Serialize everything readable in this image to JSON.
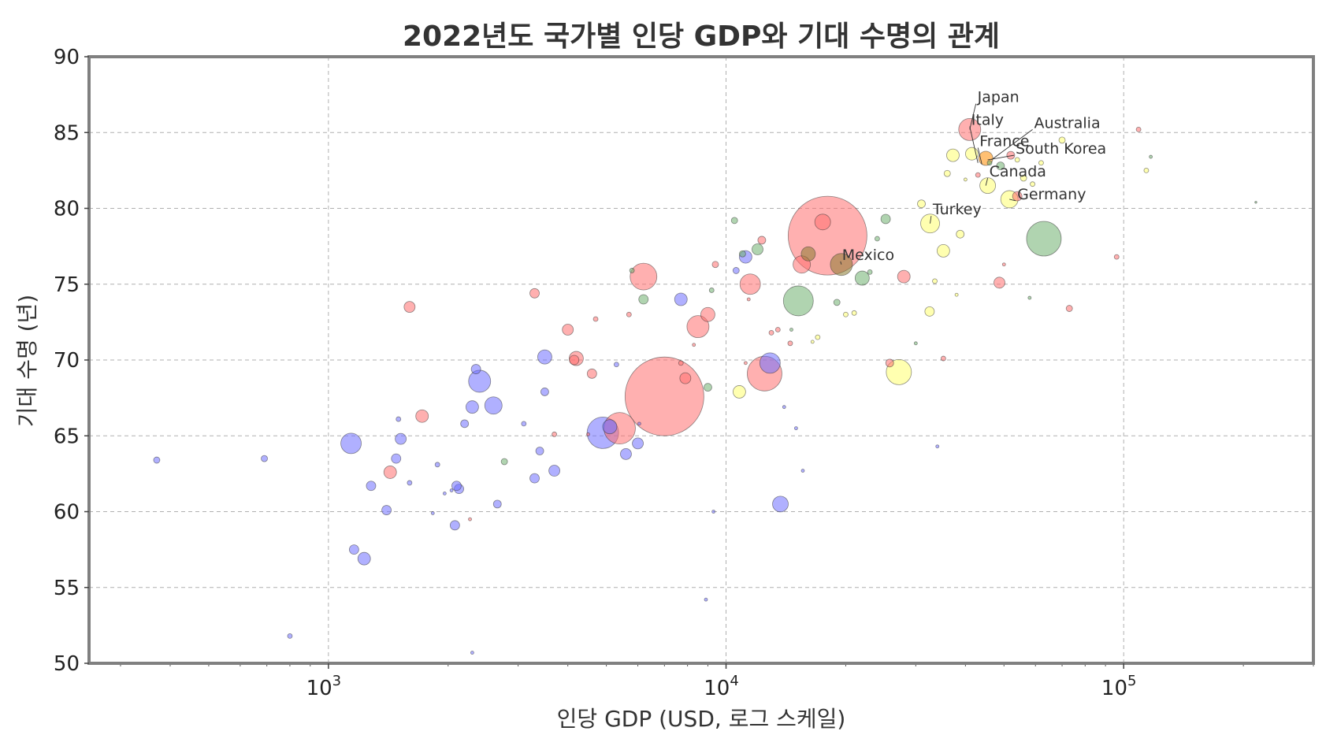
{
  "chart_data": {
    "type": "scatter",
    "title": "2022년도 국가별 인당 GDP와 기대 수명의 관계",
    "xlabel": "인당 GDP (USD, 로그 스케일)",
    "ylabel": "기대 수명 (년)",
    "x_scale": "log",
    "xlim": [
      250,
      300000
    ],
    "ylim": [
      50,
      90
    ],
    "x_ticks": [
      {
        "value": 1000,
        "base": "10",
        "exp": "3"
      },
      {
        "value": 10000,
        "base": "10",
        "exp": "4"
      },
      {
        "value": 100000,
        "base": "10",
        "exp": "5"
      }
    ],
    "y_ticks": [
      "50",
      "55",
      "60",
      "65",
      "70",
      "75",
      "80",
      "85",
      "90"
    ],
    "grid": true,
    "legend": "none",
    "colors": {
      "blue": "#8080ff",
      "red": "#ff8080",
      "green": "#80c080",
      "yellow": "#ffff80",
      "orange": "#ff8c00"
    },
    "points": [
      {
        "x": 7000,
        "y": 67.6,
        "size": 50,
        "color": "red"
      },
      {
        "x": 18000,
        "y": 78.2,
        "size": 50,
        "color": "red"
      },
      {
        "x": 63000,
        "y": 78.0,
        "size": 22,
        "color": "green"
      },
      {
        "x": 12500,
        "y": 69.1,
        "size": 22,
        "color": "red"
      },
      {
        "x": 4900,
        "y": 65.2,
        "size": 20,
        "color": "blue"
      },
      {
        "x": 15200,
        "y": 73.9,
        "size": 19,
        "color": "green"
      },
      {
        "x": 5400,
        "y": 65.5,
        "size": 20,
        "color": "red"
      },
      {
        "x": 6200,
        "y": 75.5,
        "size": 17,
        "color": "red"
      },
      {
        "x": 27200,
        "y": 69.2,
        "size": 16,
        "color": "yellow"
      },
      {
        "x": 8500,
        "y": 72.2,
        "size": 14,
        "color": "red"
      },
      {
        "x": 11500,
        "y": 75.0,
        "size": 13,
        "color": "red"
      },
      {
        "x": 19500,
        "y": 76.3,
        "size": 14,
        "color": "olive"
      },
      {
        "x": 12900,
        "y": 69.8,
        "size": 13,
        "color": "blue"
      },
      {
        "x": 2400,
        "y": 68.6,
        "size": 14,
        "color": "blue"
      },
      {
        "x": 1140,
        "y": 64.5,
        "size": 13,
        "color": "blue"
      },
      {
        "x": 2600,
        "y": 67.0,
        "size": 11,
        "color": "blue"
      },
      {
        "x": 41000,
        "y": 85.2,
        "size": 14,
        "color": "red"
      },
      {
        "x": 15500,
        "y": 76.3,
        "size": 11,
        "color": "red"
      },
      {
        "x": 32600,
        "y": 79.0,
        "size": 12,
        "color": "yellow"
      },
      {
        "x": 51600,
        "y": 80.6,
        "size": 11,
        "color": "yellow"
      },
      {
        "x": 13700,
        "y": 60.5,
        "size": 10,
        "color": "blue"
      },
      {
        "x": 45500,
        "y": 81.5,
        "size": 10,
        "color": "yellow"
      },
      {
        "x": 17500,
        "y": 79.1,
        "size": 10,
        "color": "red"
      },
      {
        "x": 9000,
        "y": 73.0,
        "size": 9,
        "color": "red"
      },
      {
        "x": 22000,
        "y": 75.4,
        "size": 9,
        "color": "green"
      },
      {
        "x": 16100,
        "y": 77.0,
        "size": 9,
        "color": "olive"
      },
      {
        "x": 45000,
        "y": 83.3,
        "size": 9,
        "color": "orange"
      },
      {
        "x": 41500,
        "y": 83.6,
        "size": 8,
        "color": "yellow"
      },
      {
        "x": 37200,
        "y": 83.5,
        "size": 8,
        "color": "yellow"
      },
      {
        "x": 3500,
        "y": 70.2,
        "size": 9,
        "color": "blue"
      },
      {
        "x": 4200,
        "y": 70.1,
        "size": 9,
        "color": "red"
      },
      {
        "x": 5100,
        "y": 65.6,
        "size": 9,
        "color": "blue"
      },
      {
        "x": 11200,
        "y": 76.8,
        "size": 8,
        "color": "blue"
      },
      {
        "x": 1720,
        "y": 66.3,
        "size": 8,
        "color": "red"
      },
      {
        "x": 1430,
        "y": 62.6,
        "size": 8,
        "color": "red"
      },
      {
        "x": 2300,
        "y": 66.9,
        "size": 8,
        "color": "blue"
      },
      {
        "x": 1230,
        "y": 56.9,
        "size": 8,
        "color": "blue"
      },
      {
        "x": 7700,
        "y": 74.0,
        "size": 8,
        "color": "blue"
      },
      {
        "x": 35200,
        "y": 77.2,
        "size": 8,
        "color": "yellow"
      },
      {
        "x": 28000,
        "y": 75.5,
        "size": 8,
        "color": "red"
      },
      {
        "x": 48700,
        "y": 75.1,
        "size": 7,
        "color": "red"
      },
      {
        "x": 6000,
        "y": 64.5,
        "size": 7,
        "color": "blue"
      },
      {
        "x": 5600,
        "y": 63.8,
        "size": 7,
        "color": "blue"
      },
      {
        "x": 10800,
        "y": 67.9,
        "size": 8,
        "color": "yellow"
      },
      {
        "x": 1600,
        "y": 73.5,
        "size": 7,
        "color": "red"
      },
      {
        "x": 4000,
        "y": 72.0,
        "size": 7,
        "color": "red"
      },
      {
        "x": 3700,
        "y": 62.7,
        "size": 7,
        "color": "blue"
      },
      {
        "x": 1520,
        "y": 64.8,
        "size": 7,
        "color": "blue"
      },
      {
        "x": 12000,
        "y": 77.3,
        "size": 7,
        "color": "green"
      },
      {
        "x": 7900,
        "y": 68.8,
        "size": 7,
        "color": "red"
      },
      {
        "x": 6200,
        "y": 74.0,
        "size": 6,
        "color": "green"
      },
      {
        "x": 25200,
        "y": 79.3,
        "size": 6,
        "color": "green"
      },
      {
        "x": 1160,
        "y": 57.5,
        "size": 6,
        "color": "blue"
      },
      {
        "x": 1280,
        "y": 61.7,
        "size": 6,
        "color": "blue"
      },
      {
        "x": 2130,
        "y": 61.5,
        "size": 6,
        "color": "blue"
      },
      {
        "x": 2100,
        "y": 61.7,
        "size": 6,
        "color": "blue"
      },
      {
        "x": 3300,
        "y": 74.4,
        "size": 6,
        "color": "red"
      },
      {
        "x": 1480,
        "y": 63.5,
        "size": 6,
        "color": "blue"
      },
      {
        "x": 1400,
        "y": 60.1,
        "size": 6,
        "color": "blue"
      },
      {
        "x": 2080,
        "y": 59.1,
        "size": 6,
        "color": "blue"
      },
      {
        "x": 3300,
        "y": 62.2,
        "size": 6,
        "color": "blue"
      },
      {
        "x": 4600,
        "y": 69.1,
        "size": 6,
        "color": "red"
      },
      {
        "x": 2660,
        "y": 60.5,
        "size": 5,
        "color": "blue"
      },
      {
        "x": 3500,
        "y": 67.9,
        "size": 5,
        "color": "blue"
      },
      {
        "x": 2200,
        "y": 65.8,
        "size": 5,
        "color": "blue"
      },
      {
        "x": 3400,
        "y": 64.0,
        "size": 5,
        "color": "blue"
      },
      {
        "x": 32500,
        "y": 73.2,
        "size": 6,
        "color": "yellow"
      },
      {
        "x": 31000,
        "y": 80.3,
        "size": 5,
        "color": "yellow"
      },
      {
        "x": 38800,
        "y": 78.3,
        "size": 5,
        "color": "yellow"
      },
      {
        "x": 54000,
        "y": 80.8,
        "size": 6,
        "color": "red"
      },
      {
        "x": 73000,
        "y": 73.4,
        "size": 4,
        "color": "red"
      },
      {
        "x": 109000,
        "y": 85.2,
        "size": 3,
        "color": "red"
      },
      {
        "x": 96000,
        "y": 76.8,
        "size": 3,
        "color": "red"
      },
      {
        "x": 114000,
        "y": 82.5,
        "size": 3,
        "color": "yellow"
      },
      {
        "x": 70000,
        "y": 84.5,
        "size": 4,
        "color": "yellow"
      },
      {
        "x": 52000,
        "y": 83.5,
        "size": 5,
        "color": "red"
      },
      {
        "x": 49000,
        "y": 82.8,
        "size": 5,
        "color": "green"
      },
      {
        "x": 36000,
        "y": 82.3,
        "size": 4,
        "color": "yellow"
      },
      {
        "x": 10500,
        "y": 79.2,
        "size": 4,
        "color": "green"
      },
      {
        "x": 9400,
        "y": 76.3,
        "size": 4,
        "color": "red"
      },
      {
        "x": 10600,
        "y": 75.9,
        "size": 4,
        "color": "blue"
      },
      {
        "x": 12300,
        "y": 77.9,
        "size": 5,
        "color": "red"
      },
      {
        "x": 11000,
        "y": 77.0,
        "size": 4,
        "color": "green"
      },
      {
        "x": 19000,
        "y": 73.8,
        "size": 4,
        "color": "green"
      },
      {
        "x": 20000,
        "y": 73.0,
        "size": 3,
        "color": "yellow"
      },
      {
        "x": 14500,
        "y": 71.1,
        "size": 3,
        "color": "red"
      },
      {
        "x": 13000,
        "y": 71.8,
        "size": 3,
        "color": "red"
      },
      {
        "x": 9000,
        "y": 68.2,
        "size": 5,
        "color": "green"
      },
      {
        "x": 25800,
        "y": 69.8,
        "size": 5,
        "color": "red"
      },
      {
        "x": 1880,
        "y": 63.1,
        "size": 3,
        "color": "blue"
      },
      {
        "x": 2770,
        "y": 63.3,
        "size": 4,
        "color": "green"
      },
      {
        "x": 5800,
        "y": 75.9,
        "size": 3,
        "color": "green"
      },
      {
        "x": 3100,
        "y": 65.8,
        "size": 3,
        "color": "blue"
      },
      {
        "x": 1500,
        "y": 66.1,
        "size": 3,
        "color": "blue"
      },
      {
        "x": 1600,
        "y": 61.9,
        "size": 3,
        "color": "blue"
      },
      {
        "x": 690,
        "y": 63.5,
        "size": 4,
        "color": "blue"
      },
      {
        "x": 370,
        "y": 63.4,
        "size": 4,
        "color": "blue"
      },
      {
        "x": 800,
        "y": 51.8,
        "size": 3,
        "color": "blue"
      },
      {
        "x": 2300,
        "y": 50.7,
        "size": 2,
        "color": "blue"
      },
      {
        "x": 1830,
        "y": 59.9,
        "size": 2,
        "color": "blue"
      },
      {
        "x": 9300,
        "y": 60.0,
        "size": 2,
        "color": "blue"
      },
      {
        "x": 8900,
        "y": 54.2,
        "size": 2,
        "color": "blue"
      },
      {
        "x": 15000,
        "y": 65.5,
        "size": 2,
        "color": "blue"
      },
      {
        "x": 15600,
        "y": 62.7,
        "size": 2,
        "color": "blue"
      },
      {
        "x": 14000,
        "y": 66.9,
        "size": 2,
        "color": "blue"
      },
      {
        "x": 3700,
        "y": 65.1,
        "size": 3,
        "color": "red"
      },
      {
        "x": 5300,
        "y": 69.7,
        "size": 3,
        "color": "blue"
      },
      {
        "x": 5700,
        "y": 73.0,
        "size": 3,
        "color": "red"
      },
      {
        "x": 4700,
        "y": 72.7,
        "size": 3,
        "color": "red"
      },
      {
        "x": 9200,
        "y": 74.6,
        "size": 3,
        "color": "green"
      },
      {
        "x": 11400,
        "y": 74.0,
        "size": 2,
        "color": "red"
      },
      {
        "x": 13500,
        "y": 72.0,
        "size": 3,
        "color": "red"
      },
      {
        "x": 14600,
        "y": 72.0,
        "size": 2,
        "color": "green"
      },
      {
        "x": 21000,
        "y": 73.1,
        "size": 3,
        "color": "yellow"
      },
      {
        "x": 17000,
        "y": 71.5,
        "size": 3,
        "color": "yellow"
      },
      {
        "x": 23000,
        "y": 75.8,
        "size": 3,
        "color": "green"
      },
      {
        "x": 24000,
        "y": 78.0,
        "size": 3,
        "color": "green"
      },
      {
        "x": 33500,
        "y": 75.2,
        "size": 3,
        "color": "yellow"
      },
      {
        "x": 35200,
        "y": 70.1,
        "size": 3,
        "color": "red"
      },
      {
        "x": 38000,
        "y": 74.3,
        "size": 2,
        "color": "yellow"
      },
      {
        "x": 40000,
        "y": 81.9,
        "size": 2,
        "color": "yellow"
      },
      {
        "x": 56000,
        "y": 82.0,
        "size": 4,
        "color": "yellow"
      },
      {
        "x": 59000,
        "y": 81.6,
        "size": 3,
        "color": "yellow"
      },
      {
        "x": 62000,
        "y": 83.0,
        "size": 3,
        "color": "yellow"
      },
      {
        "x": 50000,
        "y": 76.3,
        "size": 2,
        "color": "red"
      },
      {
        "x": 58000,
        "y": 74.1,
        "size": 2,
        "color": "green"
      },
      {
        "x": 43000,
        "y": 82.2,
        "size": 3,
        "color": "red"
      },
      {
        "x": 46000,
        "y": 83.0,
        "size": 3,
        "color": "green"
      },
      {
        "x": 54000,
        "y": 83.2,
        "size": 3,
        "color": "yellow"
      },
      {
        "x": 11200,
        "y": 69.8,
        "size": 2,
        "color": "red"
      },
      {
        "x": 4500,
        "y": 65.1,
        "size": 2,
        "color": "red"
      },
      {
        "x": 2040,
        "y": 61.4,
        "size": 2,
        "color": "blue"
      },
      {
        "x": 2270,
        "y": 59.5,
        "size": 2,
        "color": "red"
      },
      {
        "x": 1960,
        "y": 61.2,
        "size": 2,
        "color": "blue"
      },
      {
        "x": 6050,
        "y": 65.8,
        "size": 2,
        "color": "blue"
      },
      {
        "x": 7700,
        "y": 69.8,
        "size": 3,
        "color": "red"
      },
      {
        "x": 8300,
        "y": 71.0,
        "size": 2,
        "color": "red"
      },
      {
        "x": 30000,
        "y": 71.1,
        "size": 2,
        "color": "green"
      },
      {
        "x": 34000,
        "y": 64.3,
        "size": 2,
        "color": "blue"
      },
      {
        "x": 16500,
        "y": 71.2,
        "size": 2,
        "color": "yellow"
      },
      {
        "x": 117000,
        "y": 83.4,
        "size": 2,
        "color": "green"
      },
      {
        "x": 215000,
        "y": 80.4,
        "size": 1,
        "color": "green"
      },
      {
        "x": 2350,
        "y": 69.4,
        "size": 6,
        "color": "blue"
      },
      {
        "x": 4150,
        "y": 70.0,
        "size": 6,
        "color": "red"
      }
    ],
    "annotations": [
      {
        "text": "Japan",
        "x": 41000,
        "y": 85.2,
        "tx": 42500,
        "ty": 86.9
      },
      {
        "text": "Italy",
        "x": 43000,
        "y": 83.0,
        "tx": 41000,
        "ty": 85.4
      },
      {
        "text": "France",
        "x": 44000,
        "y": 82.9,
        "tx": 43000,
        "ty": 84.0
      },
      {
        "text": "Australia",
        "x": 46500,
        "y": 83.2,
        "tx": 59000,
        "ty": 85.2
      },
      {
        "text": "South Korea",
        "x": 45500,
        "y": 83.2,
        "tx": 53000,
        "ty": 83.5
      },
      {
        "text": "Canada",
        "x": 45000,
        "y": 81.5,
        "tx": 45500,
        "ty": 82.0
      },
      {
        "text": "Germany",
        "x": 51600,
        "y": 80.6,
        "tx": 53500,
        "ty": 80.5
      },
      {
        "text": "Turkey",
        "x": 32600,
        "y": 79.0,
        "tx": 32800,
        "ty": 79.5
      },
      {
        "text": "Mexico",
        "x": 19500,
        "y": 76.3,
        "tx": 19400,
        "ty": 76.5
      }
    ]
  }
}
